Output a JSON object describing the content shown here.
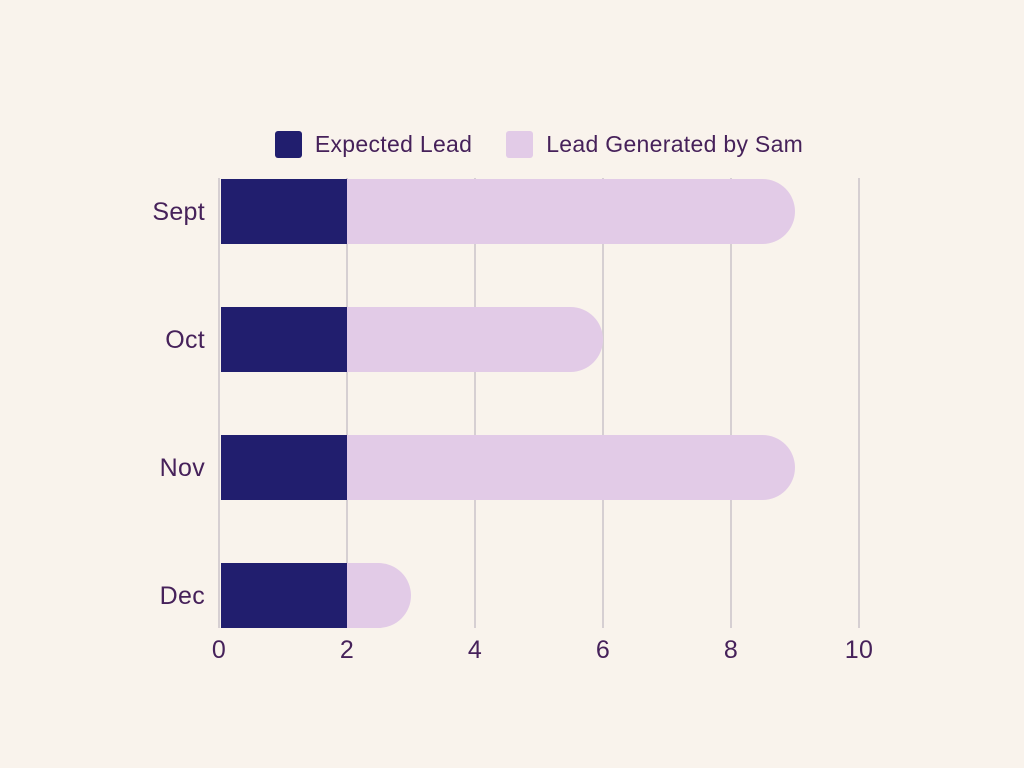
{
  "colors": {
    "background": "#f9f3ec",
    "navy": "#211e6e",
    "lavender": "#e2cbe7",
    "text": "#46215a",
    "gridline": "#d6cfd2"
  },
  "legend": {
    "position": "top",
    "items": [
      {
        "label": "Expected Lead",
        "color": "#211e6e"
      },
      {
        "label": "Lead Generated by Sam",
        "color": "#e2cbe7"
      }
    ]
  },
  "chart_data": {
    "type": "bar",
    "orientation": "horizontal",
    "overlapped": true,
    "bar_end_style": "rounded-right",
    "title": "",
    "xlabel": "",
    "ylabel": "",
    "categories": [
      "Sept",
      "Oct",
      "Nov",
      "Dec"
    ],
    "series": [
      {
        "name": "Expected Lead",
        "color": "#211e6e",
        "values": [
          2,
          2,
          2,
          2
        ]
      },
      {
        "name": "Lead Generated by Sam",
        "color": "#e2cbe7",
        "values": [
          9,
          6,
          9,
          3
        ]
      }
    ],
    "xlim": [
      0,
      10
    ],
    "xticks": [
      0,
      2,
      4,
      6,
      8,
      10
    ],
    "grid": "vertical",
    "legend_position": "top"
  }
}
